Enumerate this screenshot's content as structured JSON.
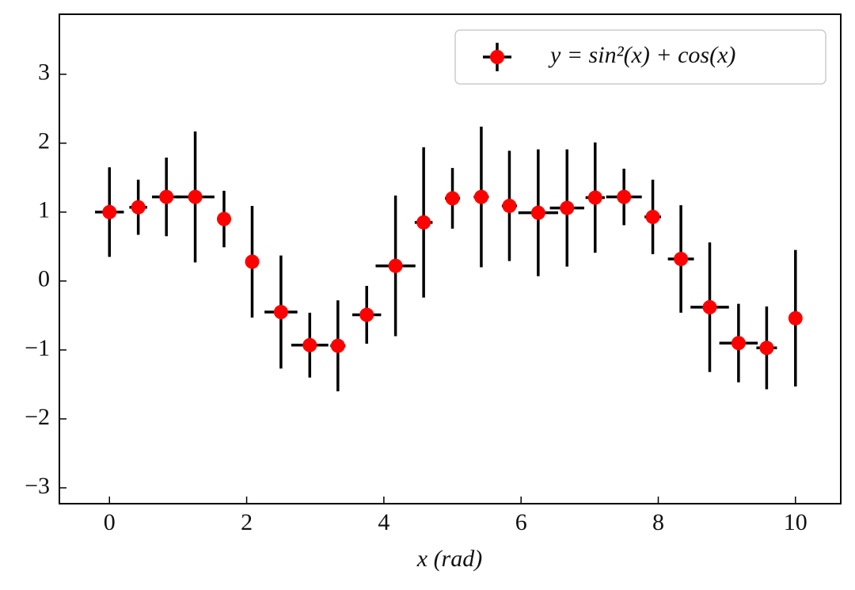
{
  "chart_data": {
    "type": "errorbar",
    "x_label": "x (rad)",
    "series": [
      {
        "name": "y = sin²(x) + cos(x)",
        "color": "#ff0000",
        "error_color": "#000000",
        "x": [
          0,
          0.42,
          0.83,
          1.25,
          1.67,
          2.08,
          2.5,
          2.92,
          3.33,
          3.75,
          4.17,
          4.58,
          5,
          5.42,
          5.83,
          6.25,
          6.67,
          7.08,
          7.5,
          7.92,
          8.33,
          8.75,
          9.17,
          9.58,
          10
        ],
        "values": [
          1.0,
          1.07,
          1.22,
          1.22,
          0.9,
          0.28,
          -0.45,
          -0.93,
          -0.94,
          -0.49,
          0.22,
          0.85,
          1.2,
          1.22,
          1.09,
          0.99,
          1.06,
          1.21,
          1.22,
          0.93,
          0.32,
          -0.38,
          -0.9,
          -0.97,
          -0.54
        ],
        "yerr": [
          0.65,
          0.4,
          0.57,
          0.95,
          0.41,
          0.81,
          0.82,
          0.47,
          0.66,
          0.42,
          1.02,
          1.09,
          0.44,
          1.02,
          0.8,
          0.92,
          0.85,
          0.8,
          0.41,
          0.54,
          0.78,
          0.94,
          0.57,
          0.6,
          0.99
        ],
        "xerr": [
          0.21,
          0.13,
          0.21,
          0.28,
          0.1,
          0.1,
          0.24,
          0.27,
          0.11,
          0.21,
          0.29,
          0.13,
          0.11,
          0.11,
          0.11,
          0.29,
          0.25,
          0.14,
          0.26,
          0.12,
          0.19,
          0.28,
          0.28,
          0.15,
          0.1
        ]
      }
    ],
    "xlim": [
      -0.73,
      10.66
    ],
    "ylim": [
      -3.23,
      3.87
    ],
    "xticks": [
      0,
      2,
      4,
      6,
      8,
      10
    ],
    "yticks": [
      {
        "value": -3,
        "label": "−3"
      },
      {
        "value": -2,
        "label": "−2"
      },
      {
        "value": -1,
        "label": "−1"
      },
      0,
      1,
      2,
      3
    ],
    "legend": "upper right",
    "grid": false
  }
}
